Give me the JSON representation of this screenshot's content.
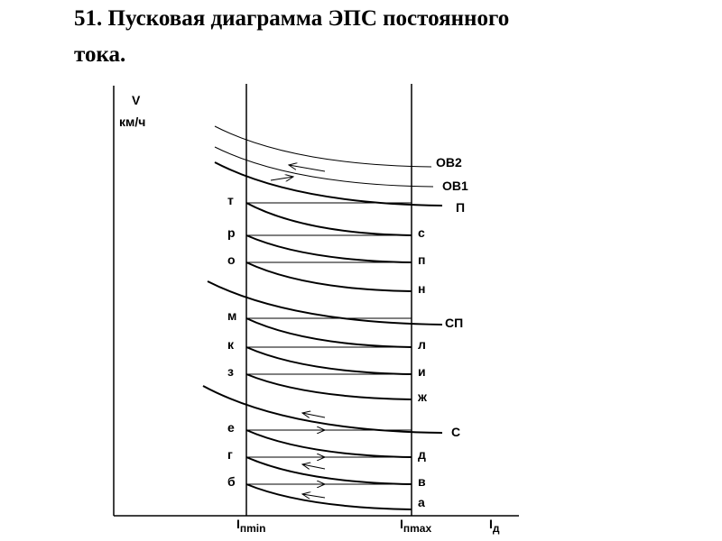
{
  "title": {
    "lines": [
      "51. Пусковая диаграмма ЭПС постоянного",
      "тока."
    ]
  },
  "axes": {
    "y_label": "V",
    "y_unit": "км/ч",
    "x_min": {
      "symbol": "I",
      "subscript": "пmin"
    },
    "x_max": {
      "symbol": "I",
      "subscript": "пmax"
    },
    "x_label": {
      "symbol": "I",
      "subscript": "д"
    }
  },
  "curves": [
    "ОВ2",
    "ОВ1",
    "П",
    "СП",
    "С"
  ],
  "left_points": [
    "т",
    "р",
    "о",
    "м",
    "к",
    "з",
    "е",
    "г",
    "б"
  ],
  "right_points": [
    "с",
    "п",
    "н",
    "л",
    "и",
    "ж",
    "д",
    "в",
    "а"
  ]
}
